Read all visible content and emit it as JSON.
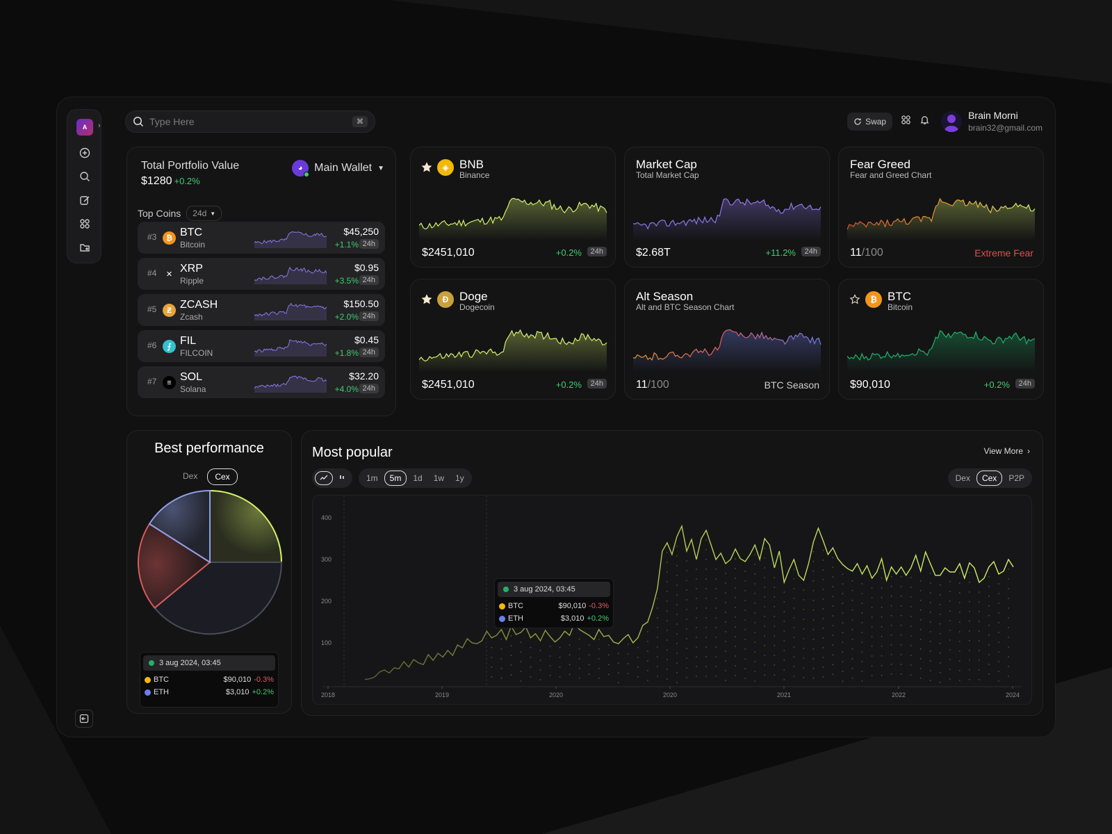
{
  "search": {
    "placeholder": "Type Here",
    "shortcut": "⌘"
  },
  "header": {
    "swap_label": "Swap",
    "user_name": "Brain Morni",
    "user_email": "brain32@gmail.com"
  },
  "sidebar": {
    "logo_text": "A"
  },
  "portfolio": {
    "label": "Total Portfolio Value",
    "value": "$1280",
    "change": "+0.2%",
    "wallet": "Main Wallet",
    "top_coins_label": "Top Coins",
    "period": "24d",
    "coins": [
      {
        "rank": "#3",
        "symbol": "BTC",
        "name": "Bitcoin",
        "price": "$45,250",
        "change": "+1.1%",
        "tag": "24h",
        "color": "#f2951b",
        "glyph": "₿"
      },
      {
        "rank": "#4",
        "symbol": "XRP",
        "name": "Ripple",
        "price": "$0.95",
        "change": "+3.5%",
        "tag": "24h",
        "color": "#232325",
        "glyph": "✕"
      },
      {
        "rank": "#5",
        "symbol": "ZCASH",
        "name": "Zcash",
        "price": "$150.50",
        "change": "+2.0%",
        "tag": "24h",
        "color": "#e8a43a",
        "glyph": "Ƶ"
      },
      {
        "rank": "#6",
        "symbol": "FIL",
        "name": "FILCOIN",
        "price": "$0.45",
        "change": "+1.8%",
        "tag": "24h",
        "color": "#35c0cf",
        "glyph": "⨍"
      },
      {
        "rank": "#7",
        "symbol": "SOL",
        "name": "Solana",
        "price": "$32.20",
        "change": "+4.0%",
        "tag": "24h",
        "color": "#000000",
        "glyph": "≡"
      }
    ]
  },
  "cards": [
    {
      "title": "BNB",
      "subtitle": "Binance",
      "value": "$2451,010",
      "change": "+0.2%",
      "tag": "24h",
      "icon": "bnb-icon",
      "icon_color": "#f0b90b",
      "glyph": "◈",
      "starred": true
    },
    {
      "title": "Market Cap",
      "subtitle": "Total Market Cap",
      "value": "$2.68T",
      "change": "+11.2%",
      "tag": "24h"
    },
    {
      "title": "Fear Greed",
      "subtitle": "Fear and Greed Chart",
      "score": "11",
      "score_max": "/100",
      "note": "Extreme Fear",
      "note_color": "#e24c4c"
    },
    {
      "title": "Doge",
      "subtitle": "Dogecoin",
      "value": "$2451,010",
      "change": "+0.2%",
      "tag": "24h",
      "icon": "doge-icon",
      "icon_color": "#c9a13a",
      "glyph": "Ð",
      "starred": true
    },
    {
      "title": "Alt Season",
      "subtitle": "Alt and BTC Season Chart",
      "score": "11",
      "score_max": "/100",
      "note": "BTC Season",
      "note_color": "#cfcfcf"
    },
    {
      "title": "BTC",
      "subtitle": "Bitcoin",
      "value": "$90,010",
      "change": "+0.2%",
      "tag": "24h",
      "icon": "btc-icon",
      "icon_color": "#f2951b",
      "glyph": "₿",
      "starred": false
    }
  ],
  "best_performance": {
    "title": "Best performance",
    "tabs": [
      "Dex",
      "Cex"
    ],
    "active_tab": "Cex",
    "tooltip": {
      "date": "3 aug 2024, 03:45",
      "rows": [
        {
          "name": "BTC",
          "price": "$90,010",
          "change": "-0.3%"
        },
        {
          "name": "ETH",
          "price": "$3,010",
          "change": "+0.2%"
        }
      ]
    }
  },
  "most_popular": {
    "title": "Most popular",
    "view_more": "View More",
    "ranges": [
      "1m",
      "5m",
      "1d",
      "1w",
      "1y"
    ],
    "active_range": "5m",
    "markets": [
      "Dex",
      "Cex",
      "P2P"
    ],
    "active_market": "Cex",
    "tooltip": {
      "date": "3 aug 2024, 03:45",
      "rows": [
        {
          "name": "BTC",
          "price": "$90,010",
          "change": "-0.3%"
        },
        {
          "name": "ETH",
          "price": "$3,010",
          "change": "+0.2%"
        }
      ]
    }
  },
  "colors": {
    "accent_green": "#d6f06a",
    "positive": "#3ecf6e",
    "negative": "#e24c4c",
    "purple": "#8d78e8"
  },
  "chart_data": [
    {
      "type": "pie",
      "title": "Best performance",
      "values": [
        25,
        39,
        20,
        16
      ],
      "colors": [
        "#d6f06a",
        "#2a2c3a",
        "#d85a5a",
        "#8ea0e6"
      ]
    },
    {
      "type": "line",
      "title": "Most popular",
      "x_tick_labels": [
        "2018",
        "2019",
        "2020",
        "2020",
        "2021",
        "2022",
        "2024"
      ],
      "y_tick_labels": [
        "100",
        "200",
        "300",
        "400"
      ],
      "ylim": [
        0,
        420
      ],
      "values": [
        12,
        14,
        18,
        30,
        35,
        28,
        40,
        38,
        55,
        42,
        60,
        52,
        48,
        72,
        58,
        75,
        66,
        82,
        70,
        95,
        88,
        110,
        100,
        98,
        105,
        128,
        112,
        118,
        132,
        108,
        140,
        120,
        125,
        138,
        112,
        122,
        105,
        130,
        115,
        102,
        112,
        128,
        118,
        148,
        132,
        125,
        118,
        108,
        132,
        115,
        118,
        102,
        98,
        110,
        120,
        100,
        112,
        142,
        150,
        185,
        230,
        320,
        340,
        312,
        355,
        380,
        320,
        348,
        300,
        350,
        370,
        335,
        300,
        315,
        290,
        300,
        325,
        302,
        295,
        312,
        335,
        300,
        350,
        335,
        280,
        320,
        245,
        275,
        300,
        262,
        250,
        290,
        342,
        375,
        345,
        312,
        328,
        302,
        288,
        278,
        272,
        290,
        265,
        285,
        255,
        270,
        302,
        250,
        282,
        265,
        282,
        262,
        280,
        310,
        272,
        318,
        290,
        262,
        262,
        280,
        270,
        270,
        290,
        255,
        292,
        280,
        245,
        255,
        282,
        295,
        265,
        272,
        300,
        282
      ]
    }
  ]
}
